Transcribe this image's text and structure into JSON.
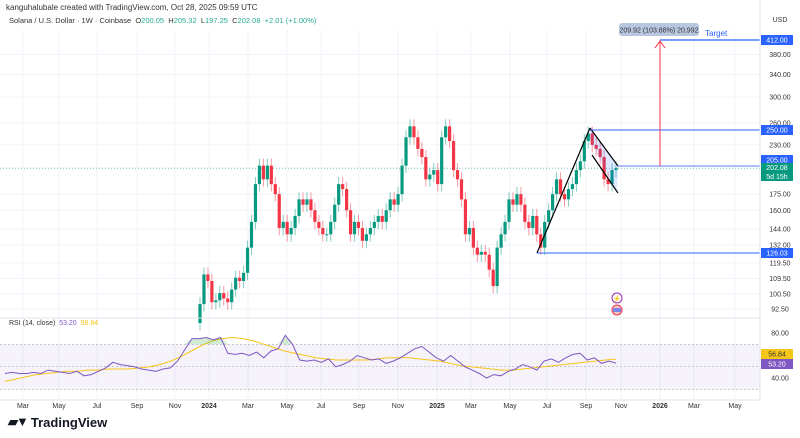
{
  "header": {
    "credit": "kanguhalubale created with TradingView.com, Oct 28, 2025 09:59 UTC",
    "symbol": "Solana / U.S. Dollar · 1W · Coinbase",
    "o_label": "O",
    "o": "200.05",
    "h_label": "H",
    "h": "205.32",
    "l_label": "L",
    "l": "197.25",
    "c_label": "C",
    "c": "202.08",
    "change": "+2.01 (+1.00%)"
  },
  "price_axis": {
    "currency": "USD",
    "ticks": [
      "380.00",
      "340.00",
      "300.00",
      "260.00",
      "230.00",
      "175.00",
      "160.00",
      "144.00",
      "132.00",
      "119.50",
      "109.50",
      "100.50",
      "92.50"
    ],
    "tags": {
      "target": "412.00",
      "resistance": "250.00",
      "flag_top": "205.00",
      "last": "202.08",
      "countdown": "5d 15h",
      "support": "126.03"
    }
  },
  "annotations": {
    "measure": "209.92 (103.88%) 20,992",
    "target_label": "Target"
  },
  "rsi": {
    "label": "RSI (14, close)",
    "value": "53.20",
    "ma_value": "56.84",
    "ticks": [
      "80.00",
      "40.00"
    ]
  },
  "time_axis": [
    "Mar",
    "May",
    "Jul",
    "Sep",
    "Nov",
    "2024",
    "Mar",
    "May",
    "Jul",
    "Sep",
    "Nov",
    "2025",
    "Mar",
    "May",
    "Jul",
    "Sep",
    "Nov",
    "2026",
    "Mar",
    "May"
  ],
  "brand": "TradingView",
  "colors": {
    "up": "#089981",
    "down": "#f23645",
    "line": "#2962ff",
    "rsi": "#7e57c2",
    "rsi_ma": "#f5c518",
    "arrow": "#f23645"
  },
  "chart_data": {
    "type": "candlestick",
    "scale": "log",
    "interval": "1W",
    "ylim": [
      92.5,
      412
    ],
    "closes": [
      95,
      112,
      108,
      96,
      97,
      101,
      98,
      96,
      103,
      110,
      108,
      113,
      130,
      150,
      185,
      205,
      190,
      205,
      185,
      175,
      145,
      150,
      140,
      145,
      155,
      170,
      165,
      170,
      160,
      150,
      145,
      140,
      140,
      150,
      165,
      185,
      180,
      160,
      140,
      150,
      145,
      135,
      140,
      145,
      150,
      155,
      150,
      160,
      170,
      165,
      175,
      205,
      240,
      255,
      240,
      225,
      215,
      190,
      195,
      200,
      185,
      240,
      255,
      235,
      200,
      190,
      170,
      140,
      145,
      130,
      125,
      127,
      125,
      115,
      105,
      130,
      140,
      150,
      170,
      165,
      175,
      165,
      150,
      145,
      155,
      140,
      130,
      150,
      160,
      175,
      190,
      175,
      170,
      180,
      185,
      200,
      210,
      235,
      245,
      230,
      225,
      215,
      190,
      185,
      200,
      202.08
    ],
    "rsi_values": [
      44,
      45,
      44,
      44,
      45,
      44,
      47,
      46,
      45,
      44,
      46,
      42,
      43,
      46,
      49,
      54,
      52,
      51,
      50,
      48,
      47,
      46,
      48,
      49,
      55,
      65,
      75,
      75,
      76,
      74,
      76,
      62,
      61,
      62,
      60,
      63,
      58,
      64,
      66,
      78,
      70,
      56,
      55,
      56,
      54,
      57,
      50,
      52,
      55,
      60,
      58,
      56,
      57,
      53,
      55,
      58,
      62,
      66,
      68,
      63,
      58,
      55,
      60,
      55,
      50,
      47,
      44,
      40,
      43,
      42,
      46,
      48,
      52,
      50,
      47,
      55,
      57,
      54,
      58,
      61,
      62,
      56,
      58,
      53,
      55,
      53.2
    ],
    "rsi_ma_values": [
      37,
      39,
      41,
      43,
      44,
      45,
      46,
      46,
      47,
      47,
      48,
      48,
      48,
      49,
      50,
      52,
      55,
      59,
      64,
      69,
      73,
      75,
      76,
      75,
      73,
      70,
      67,
      64,
      62,
      60,
      58,
      57,
      56,
      56,
      56,
      56,
      57,
      58,
      58,
      58,
      57,
      56,
      55,
      53,
      51,
      50,
      49,
      48,
      47,
      47,
      48,
      49,
      50,
      51,
      52,
      53,
      54,
      55,
      56,
      56.84
    ],
    "rsi_bands": [
      70,
      50,
      30
    ]
  }
}
